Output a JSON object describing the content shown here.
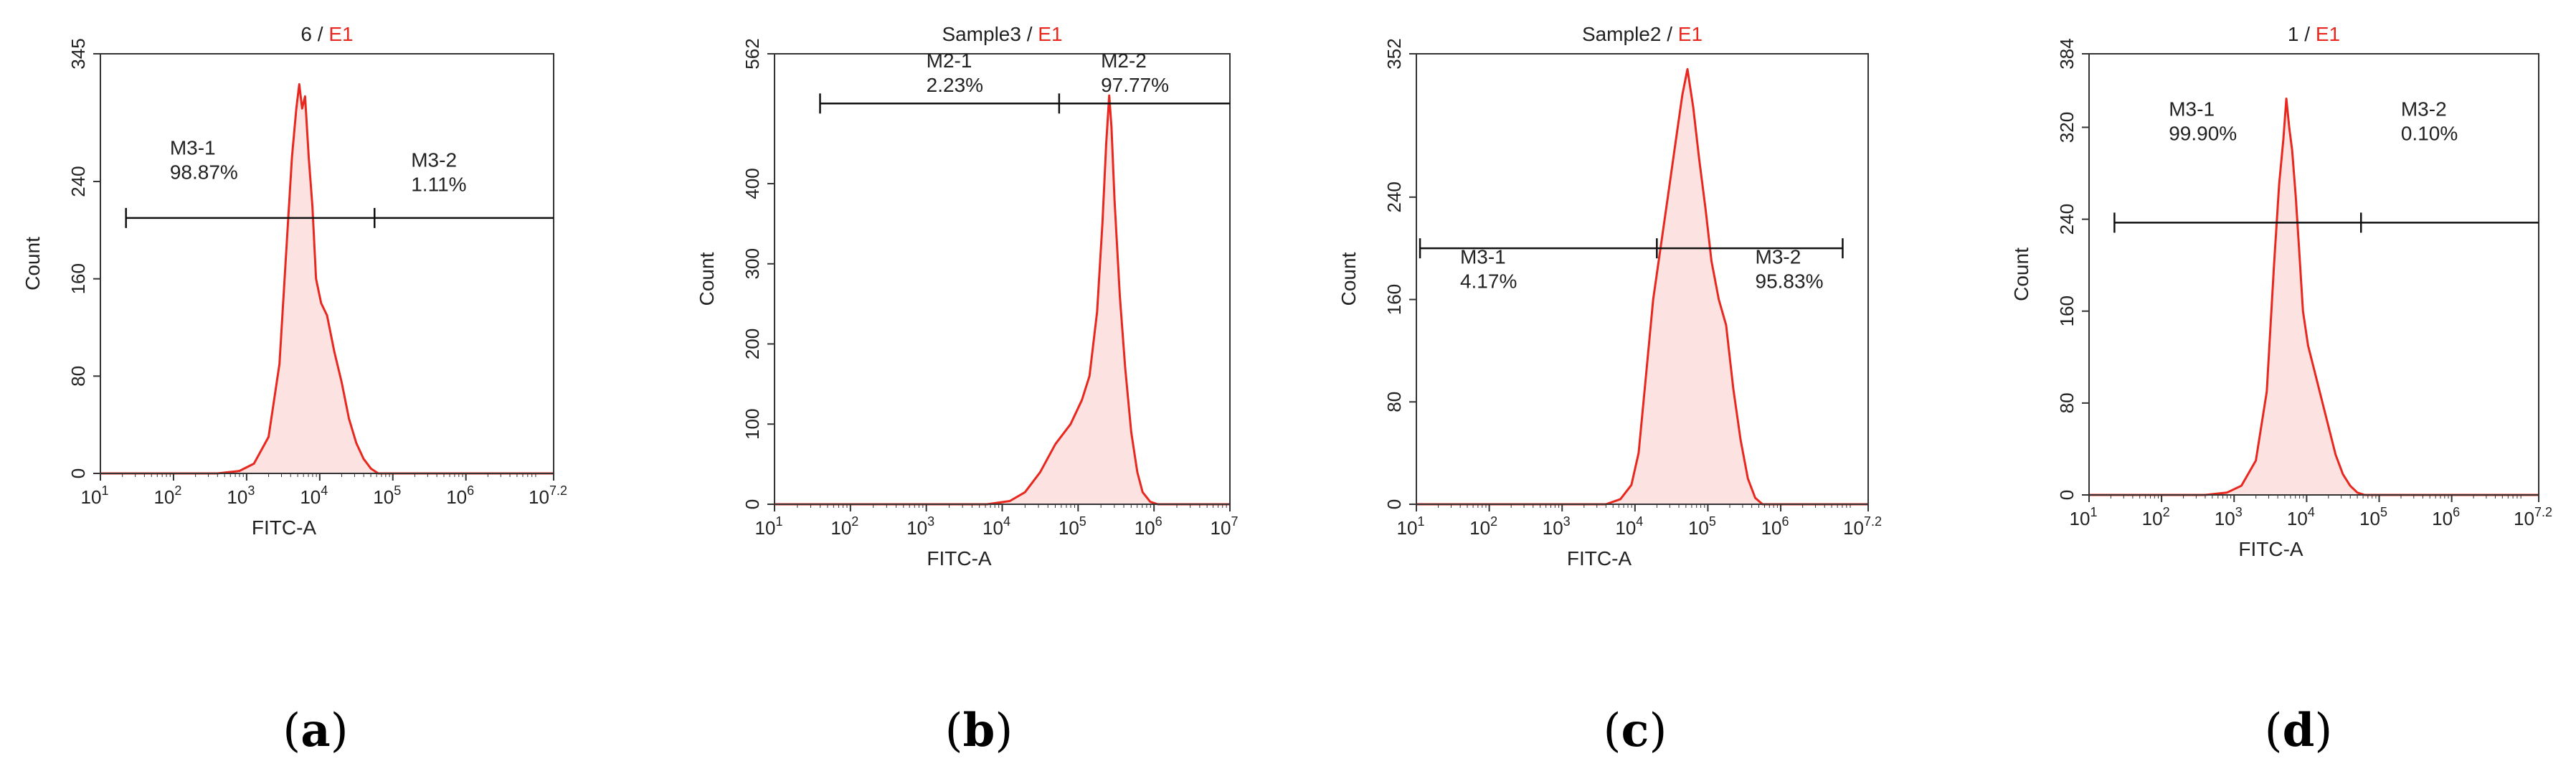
{
  "chart_data": [
    {
      "id": "a",
      "type": "histogram",
      "title_prefix": "6 / ",
      "title_gate": "E1",
      "xlabel": "FITC-A",
      "ylabel": "Count",
      "x_scale": "log10",
      "xlim_log": [
        1,
        7.2
      ],
      "ylim": [
        0,
        345
      ],
      "yticks": [
        0,
        80,
        160,
        240,
        345
      ],
      "xticks": [
        {
          "base": "10",
          "exp": "1"
        },
        {
          "base": "10",
          "exp": "2"
        },
        {
          "base": "10",
          "exp": "3"
        },
        {
          "base": "10",
          "exp": "4"
        },
        {
          "base": "10",
          "exp": "5"
        },
        {
          "base": "10",
          "exp": "6"
        },
        {
          "base": "10",
          "exp": "7.2"
        }
      ],
      "marker_y": 210,
      "marker_ticks_log": [
        1.35,
        4.75
      ],
      "marker_end_log": 7.2,
      "markers": [
        {
          "label": "M3-1",
          "percent": "98.87%",
          "label_pos": [
            1.95,
            262
          ]
        },
        {
          "label": "M3-2",
          "percent": "1.11%",
          "label_pos": [
            5.25,
            252
          ]
        }
      ],
      "profile": [
        [
          1.0,
          0
        ],
        [
          2.6,
          0
        ],
        [
          2.9,
          2
        ],
        [
          3.1,
          8
        ],
        [
          3.3,
          30
        ],
        [
          3.45,
          90
        ],
        [
          3.55,
          190
        ],
        [
          3.62,
          260
        ],
        [
          3.68,
          300
        ],
        [
          3.72,
          320
        ],
        [
          3.76,
          300
        ],
        [
          3.8,
          310
        ],
        [
          3.85,
          260
        ],
        [
          3.9,
          220
        ],
        [
          3.95,
          160
        ],
        [
          4.02,
          140
        ],
        [
          4.1,
          130
        ],
        [
          4.2,
          100
        ],
        [
          4.3,
          75
        ],
        [
          4.4,
          45
        ],
        [
          4.5,
          25
        ],
        [
          4.6,
          12
        ],
        [
          4.7,
          4
        ],
        [
          4.8,
          0
        ],
        [
          7.2,
          0
        ]
      ],
      "subfigure_label": "a"
    },
    {
      "id": "b",
      "type": "histogram",
      "title_prefix": "Sample3 / ",
      "title_gate": "E1",
      "xlabel": "FITC-A",
      "ylabel": "Count",
      "x_scale": "log10",
      "xlim_log": [
        1,
        7
      ],
      "ylim": [
        0,
        562
      ],
      "yticks": [
        0,
        100,
        200,
        300,
        400,
        562
      ],
      "xticks": [
        {
          "base": "10",
          "exp": "1"
        },
        {
          "base": "10",
          "exp": "2"
        },
        {
          "base": "10",
          "exp": "3"
        },
        {
          "base": "10",
          "exp": "4"
        },
        {
          "base": "10",
          "exp": "5"
        },
        {
          "base": "10",
          "exp": "6"
        },
        {
          "base": "10",
          "exp": "7"
        }
      ],
      "marker_y": 500,
      "marker_ticks_log": [
        1.6,
        4.75
      ],
      "marker_end_log": 7,
      "markers": [
        {
          "label": "M2-1",
          "percent": "2.23%",
          "label_pos": [
            3.0,
            545
          ]
        },
        {
          "label": "M2-2",
          "percent": "97.77%",
          "label_pos": [
            5.3,
            545
          ]
        }
      ],
      "profile": [
        [
          1.0,
          0
        ],
        [
          3.8,
          0
        ],
        [
          4.1,
          4
        ],
        [
          4.3,
          15
        ],
        [
          4.5,
          40
        ],
        [
          4.7,
          75
        ],
        [
          4.9,
          100
        ],
        [
          5.05,
          130
        ],
        [
          5.15,
          160
        ],
        [
          5.25,
          240
        ],
        [
          5.32,
          350
        ],
        [
          5.37,
          450
        ],
        [
          5.41,
          510
        ],
        [
          5.44,
          470
        ],
        [
          5.48,
          380
        ],
        [
          5.55,
          260
        ],
        [
          5.62,
          170
        ],
        [
          5.7,
          90
        ],
        [
          5.78,
          40
        ],
        [
          5.85,
          15
        ],
        [
          5.95,
          3
        ],
        [
          6.05,
          0
        ],
        [
          7.0,
          0
        ]
      ],
      "subfigure_label": "b"
    },
    {
      "id": "c",
      "type": "histogram",
      "title_prefix": "Sample2 / ",
      "title_gate": "E1",
      "xlabel": "FITC-A",
      "ylabel": "Count",
      "x_scale": "log10",
      "xlim_log": [
        1,
        7.2
      ],
      "ylim": [
        0,
        352
      ],
      "yticks": [
        0,
        80,
        160,
        240,
        352
      ],
      "xticks": [
        {
          "base": "10",
          "exp": "1"
        },
        {
          "base": "10",
          "exp": "2"
        },
        {
          "base": "10",
          "exp": "3"
        },
        {
          "base": "10",
          "exp": "4"
        },
        {
          "base": "10",
          "exp": "5"
        },
        {
          "base": "10",
          "exp": "6"
        },
        {
          "base": "10",
          "exp": "7.2"
        }
      ],
      "marker_y": 200,
      "marker_ticks_log": [
        1.05,
        4.3,
        6.85
      ],
      "marker_end_log": 6.85,
      "markers": [
        {
          "label": "M3-1",
          "percent": "4.17%",
          "label_pos": [
            1.6,
            188
          ]
        },
        {
          "label": "M3-2",
          "percent": "95.83%",
          "label_pos": [
            5.65,
            188
          ]
        }
      ],
      "profile": [
        [
          1.0,
          0
        ],
        [
          3.6,
          0
        ],
        [
          3.8,
          4
        ],
        [
          3.95,
          15
        ],
        [
          4.05,
          40
        ],
        [
          4.15,
          100
        ],
        [
          4.25,
          160
        ],
        [
          4.35,
          200
        ],
        [
          4.45,
          240
        ],
        [
          4.55,
          280
        ],
        [
          4.65,
          320
        ],
        [
          4.72,
          340
        ],
        [
          4.8,
          310
        ],
        [
          4.88,
          270
        ],
        [
          4.97,
          230
        ],
        [
          5.05,
          190
        ],
        [
          5.15,
          160
        ],
        [
          5.25,
          140
        ],
        [
          5.35,
          90
        ],
        [
          5.45,
          50
        ],
        [
          5.55,
          20
        ],
        [
          5.65,
          5
        ],
        [
          5.75,
          0
        ],
        [
          7.2,
          0
        ]
      ],
      "subfigure_label": "c"
    },
    {
      "id": "d",
      "type": "histogram",
      "title_prefix": "1 / ",
      "title_gate": "E1",
      "xlabel": "FITC-A",
      "ylabel": "Count",
      "x_scale": "log10",
      "xlim_log": [
        1,
        7.2
      ],
      "ylim": [
        0,
        384
      ],
      "yticks": [
        0,
        80,
        160,
        240,
        320,
        384
      ],
      "xticks": [
        {
          "base": "10",
          "exp": "1"
        },
        {
          "base": "10",
          "exp": "2"
        },
        {
          "base": "10",
          "exp": "3"
        },
        {
          "base": "10",
          "exp": "4"
        },
        {
          "base": "10",
          "exp": "5"
        },
        {
          "base": "10",
          "exp": "6"
        },
        {
          "base": "10",
          "exp": "7.2"
        }
      ],
      "marker_y": 237,
      "marker_ticks_log": [
        1.35,
        4.75
      ],
      "marker_end_log": 7.2,
      "markers": [
        {
          "label": "M3-1",
          "percent": "99.90%",
          "label_pos": [
            2.1,
            330
          ]
        },
        {
          "label": "M3-2",
          "percent": "0.10%",
          "label_pos": [
            5.3,
            330
          ]
        }
      ],
      "profile": [
        [
          1.0,
          0
        ],
        [
          2.6,
          0
        ],
        [
          2.9,
          2
        ],
        [
          3.1,
          8
        ],
        [
          3.3,
          30
        ],
        [
          3.45,
          90
        ],
        [
          3.55,
          200
        ],
        [
          3.62,
          270
        ],
        [
          3.68,
          310
        ],
        [
          3.72,
          345
        ],
        [
          3.76,
          320
        ],
        [
          3.8,
          300
        ],
        [
          3.85,
          260
        ],
        [
          3.9,
          210
        ],
        [
          3.95,
          160
        ],
        [
          4.02,
          130
        ],
        [
          4.1,
          110
        ],
        [
          4.2,
          85
        ],
        [
          4.3,
          60
        ],
        [
          4.4,
          35
        ],
        [
          4.5,
          18
        ],
        [
          4.6,
          8
        ],
        [
          4.7,
          2
        ],
        [
          4.8,
          0
        ],
        [
          7.2,
          0
        ]
      ],
      "subfigure_label": "d"
    }
  ],
  "colors": {
    "trace": "#e8281f",
    "fill": "#fde2e2",
    "gate": "#e8281f",
    "text": "#222222",
    "frame": "#333333"
  }
}
